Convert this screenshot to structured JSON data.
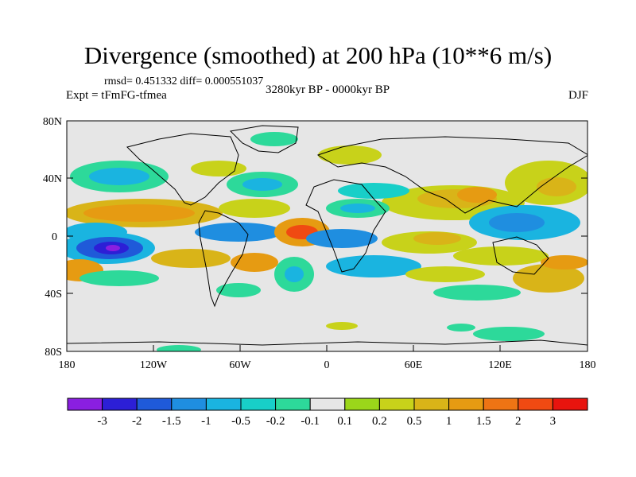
{
  "title": "Divergence (smoothed) at 200 hPa (10**6 m/s)",
  "stats": "rmsd= 0.451332 diff= 0.000551037",
  "period": "3280kyr BP - 0000kyr BP",
  "experiment": "Expt = tFmFG-tfmea",
  "season": "DJF",
  "lat_ticks": [
    "80N",
    "40N",
    "0",
    "40S",
    "80S"
  ],
  "lon_ticks": [
    "180",
    "120W",
    "60W",
    "0",
    "60E",
    "120E",
    "180"
  ],
  "colorbar": {
    "labels": [
      "-3",
      "-2",
      "-1.5",
      "-1",
      "-0.5",
      "-0.2",
      "-0.1",
      "0.1",
      "0.2",
      "0.5",
      "1",
      "1.5",
      "2",
      "3"
    ],
    "colors": [
      "#8a1fe0",
      "#2c1fd6",
      "#1f5ad9",
      "#1f8ee0",
      "#1ab4e0",
      "#18cfc8",
      "#2dd99a",
      "#e6e6e6",
      "#9bd61a",
      "#c8d21a",
      "#d9b418",
      "#e69b12",
      "#ee7414",
      "#f04a12",
      "#e8140e"
    ]
  }
}
